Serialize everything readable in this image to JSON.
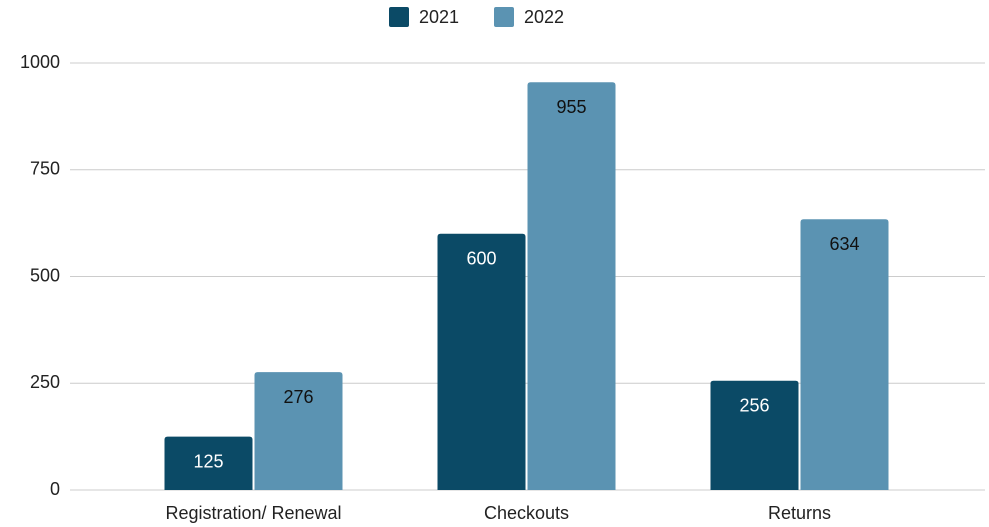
{
  "chart_data": {
    "type": "bar",
    "categories": [
      "Registration/ Renewal",
      "Checkouts",
      "Returns"
    ],
    "series": [
      {
        "name": "2021",
        "color": "#0b4a66",
        "values": [
          125,
          600,
          256
        ]
      },
      {
        "name": "2022",
        "color": "#5b93b2",
        "values": [
          276,
          955,
          634
        ]
      }
    ],
    "ylim": [
      0,
      1000
    ],
    "yticks": [
      0,
      250,
      500,
      750,
      1000
    ],
    "grid": true,
    "legend": "top"
  }
}
